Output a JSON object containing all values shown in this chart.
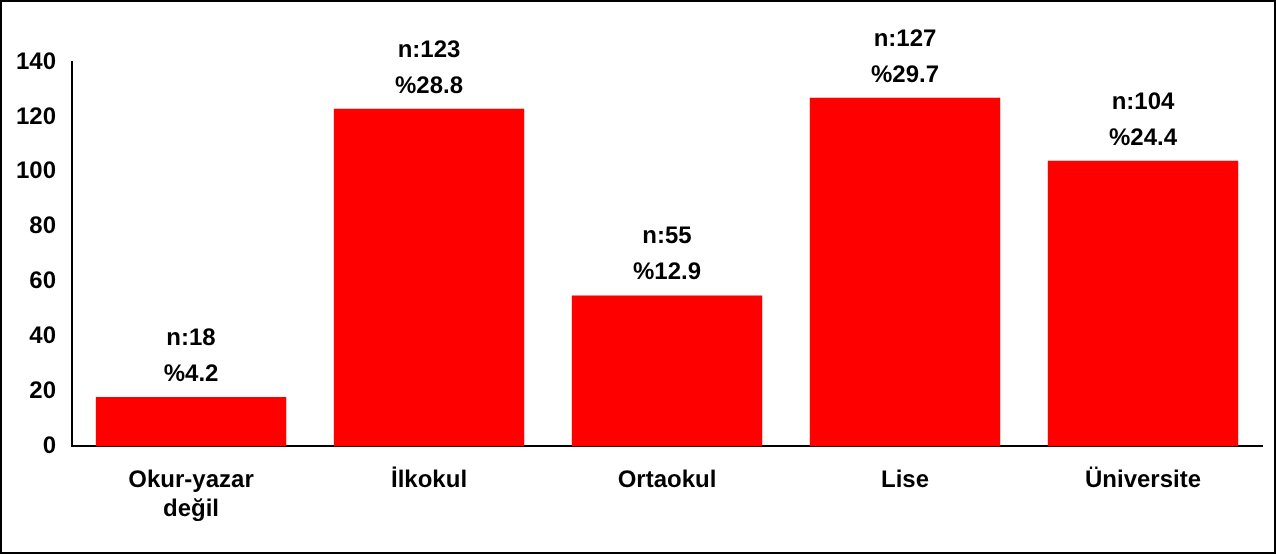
{
  "chart_data": {
    "type": "bar",
    "categories": [
      "Okur-yazar\ndeğil",
      "İlkokul",
      "Ortaokul",
      "Lise",
      "Üniversite"
    ],
    "values": [
      18,
      123,
      55,
      127,
      104
    ],
    "color": "#ff0000",
    "value_labels": [
      "n:18\n%4.2",
      "n:123\n%28.8",
      "n:55\n%12.9",
      "n:127\n%29.7",
      "n:104\n%24.4"
    ],
    "ylim": [
      0,
      140
    ],
    "yticks": [
      0,
      20,
      40,
      60,
      80,
      100,
      120,
      140
    ],
    "grid": false,
    "legend": false
  }
}
